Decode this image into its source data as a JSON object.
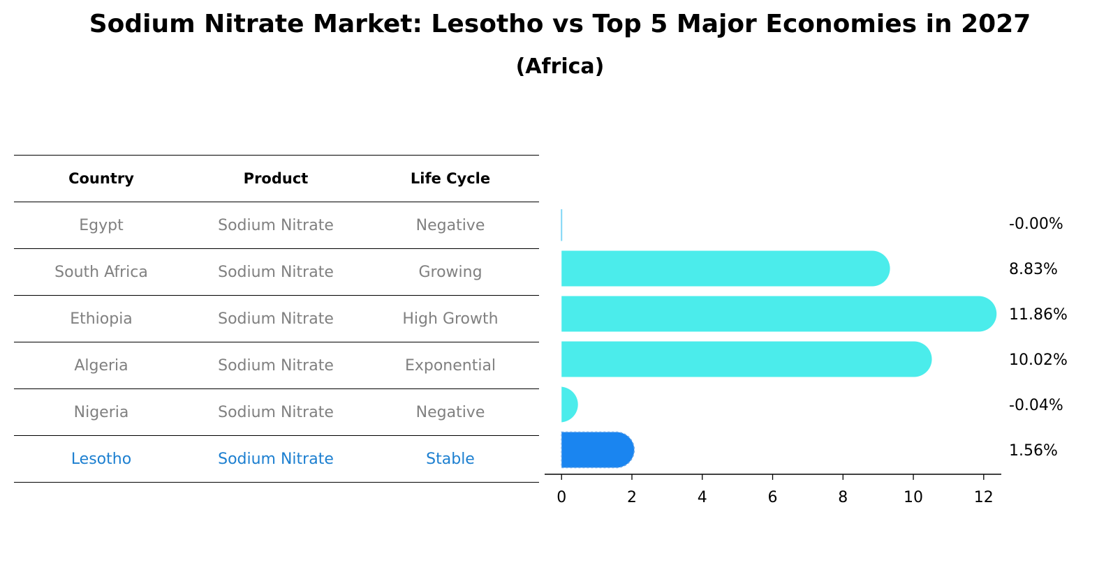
{
  "title": "Sodium Nitrate Market: Lesotho vs Top 5 Major Economies in 2027",
  "subtitle": "(Africa)",
  "table": {
    "headers": [
      "Country",
      "Product",
      "Life Cycle"
    ],
    "rows": [
      [
        "Egypt",
        "Sodium Nitrate",
        "Negative"
      ],
      [
        "South Africa",
        "Sodium Nitrate",
        "Growing"
      ],
      [
        "Ethiopia",
        "Sodium Nitrate",
        "High Growth"
      ],
      [
        "Algeria",
        "Sodium Nitrate",
        "Exponential"
      ],
      [
        "Nigeria",
        "Sodium Nitrate",
        "Negative"
      ],
      [
        "Lesotho",
        "Sodium Nitrate",
        "Stable"
      ]
    ]
  },
  "chart_data": {
    "type": "bar",
    "orientation": "horizontal",
    "categories": [
      "Egypt",
      "South Africa",
      "Ethiopia",
      "Algeria",
      "Nigeria",
      "Lesotho"
    ],
    "values": [
      -0.0,
      8.83,
      11.86,
      10.02,
      -0.04,
      1.56
    ],
    "value_labels": [
      "-0.00%",
      "8.83%",
      "11.86%",
      "10.02%",
      "-0.04%",
      "1.56%"
    ],
    "highlight": "Lesotho",
    "xlim": [
      -0.6,
      12.5
    ],
    "xticks": [
      0,
      2,
      4,
      6,
      8,
      10,
      12
    ],
    "colors": {
      "default": "#4beceb",
      "highlight": "#1a85f0",
      "text": "#000000"
    }
  }
}
